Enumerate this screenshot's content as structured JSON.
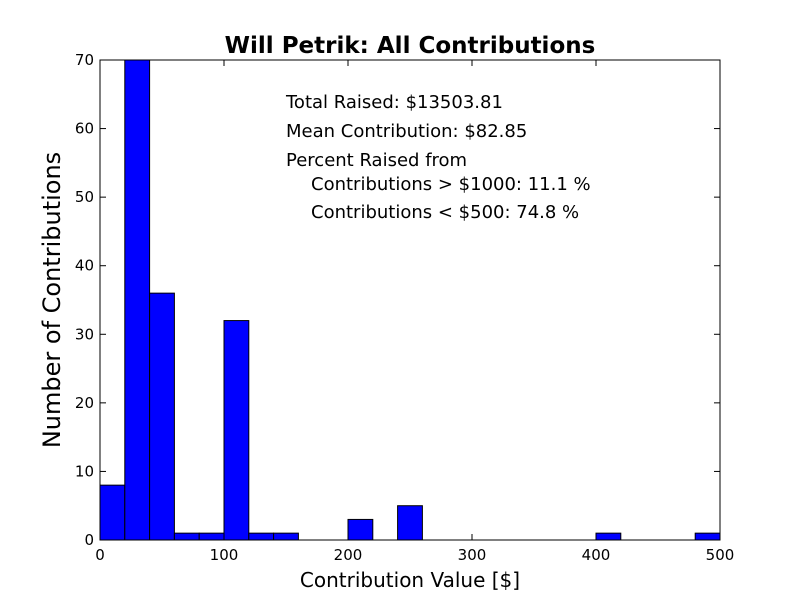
{
  "chart_data": {
    "type": "bar",
    "title": "Will Petrik: All Contributions",
    "xlabel": "Contribution Value [$]",
    "ylabel": "Number of Contributions",
    "xlim": [
      0,
      500
    ],
    "ylim": [
      0,
      70
    ],
    "xticks": [
      0,
      100,
      200,
      300,
      400,
      500
    ],
    "yticks": [
      0,
      10,
      20,
      30,
      40,
      50,
      60,
      70
    ],
    "bin_edges": [
      0,
      20,
      40,
      60,
      80,
      100,
      120,
      140,
      160,
      180,
      200,
      220,
      240,
      260,
      280,
      300,
      320,
      340,
      360,
      380,
      400,
      420,
      440,
      460,
      480,
      500
    ],
    "values": [
      8,
      70,
      36,
      1,
      1,
      32,
      1,
      1,
      0,
      0,
      3,
      0,
      5,
      0,
      0,
      0,
      0,
      0,
      0,
      0,
      1,
      0,
      0,
      0,
      1
    ],
    "bar_color": "#0000ff",
    "grid": false,
    "annotations": [
      "Total Raised: $13503.81",
      "Mean Contribution: $82.85",
      "Percent Raised from",
      "Contributions > $1000: 11.1 %",
      "Contributions < $500: 74.8 %"
    ]
  }
}
